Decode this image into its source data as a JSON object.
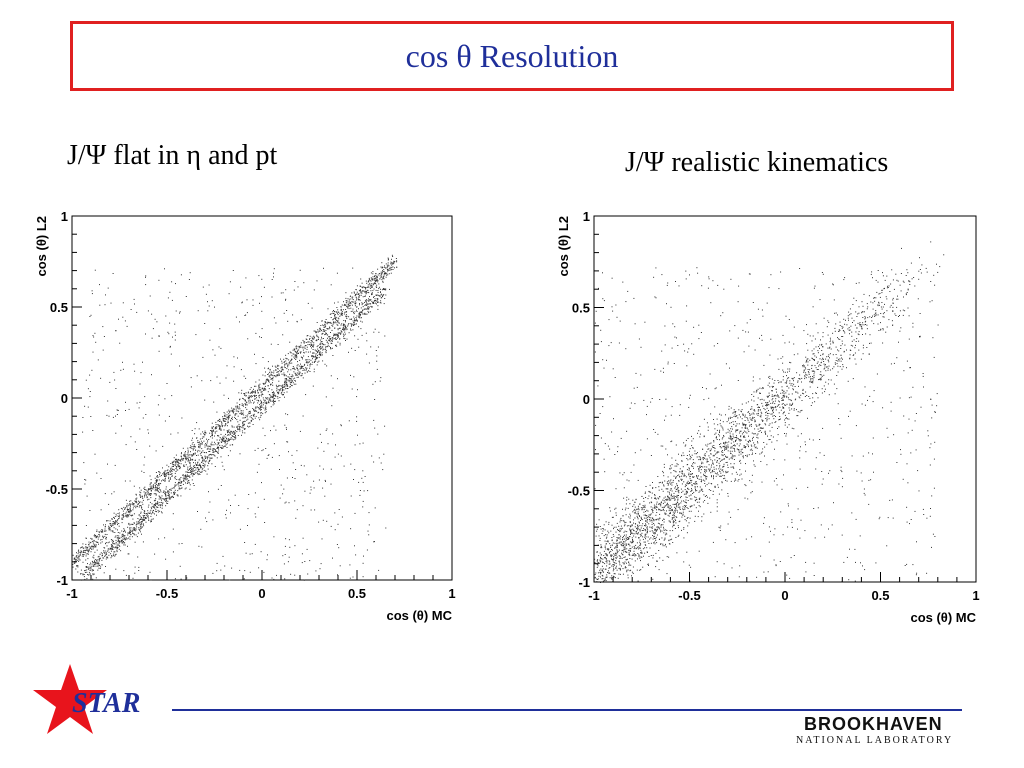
{
  "slide": {
    "title": "cos θ Resolution",
    "left_subtitle": "J/Ψ flat in η and pt",
    "right_subtitle": "J/Ψ realistic kinematics"
  },
  "footer": {
    "logo_text": "STAR",
    "lab_name": "BROOKHAVEN",
    "lab_subtitle": "NATIONAL LABORATORY",
    "star_color": "#e8141c",
    "accent_color": "#1f2f9a"
  },
  "chart_data": [
    {
      "type": "scatter",
      "xlabel": "cos (θ) MC",
      "ylabel": "cos (θ) L2",
      "xlim": [
        -1,
        1
      ],
      "ylim": [
        -1,
        1
      ],
      "xticks": [
        "-1",
        "-0.5",
        "0",
        "0.5",
        "1"
      ],
      "yticks": [
        "-1",
        "-0.5",
        "0",
        "0.5",
        "1"
      ],
      "grid": false,
      "bands": [
        {
          "x": [
            -1.0,
            0.7
          ],
          "y": [
            -0.9,
            0.75
          ]
        },
        {
          "x": [
            -0.95,
            0.65
          ],
          "y": [
            -0.98,
            0.6
          ]
        }
      ],
      "background_range": {
        "x": [
          -0.95,
          0.65
        ],
        "y": [
          -1.0,
          0.72
        ]
      }
    },
    {
      "type": "scatter",
      "xlabel": "cos (θ) MC",
      "ylabel": "cos (θ) L2",
      "xlim": [
        -1,
        1
      ],
      "ylim": [
        -1,
        1
      ],
      "xticks": [
        "-1",
        "-0.5",
        "0",
        "0.5",
        "1"
      ],
      "yticks": [
        "-1",
        "-0.5",
        "0",
        "0.5",
        "1"
      ],
      "grid": false,
      "bands": [
        {
          "x": [
            -1.0,
            0.8
          ],
          "y": [
            -0.95,
            0.8
          ]
        }
      ],
      "background_range": {
        "x": [
          -1.0,
          0.8
        ],
        "y": [
          -1.0,
          0.72
        ]
      }
    }
  ]
}
